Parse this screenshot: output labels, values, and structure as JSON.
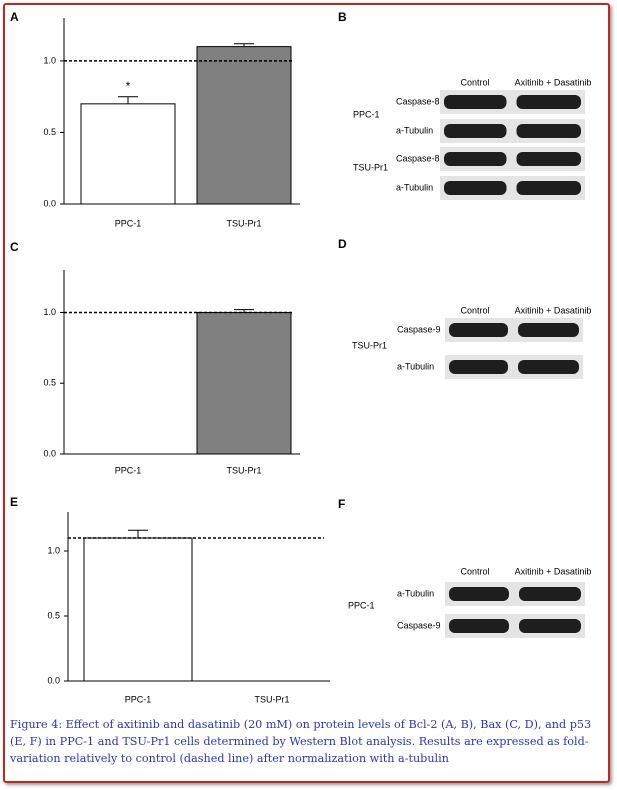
{
  "chart_data": [
    {
      "type": "bar",
      "label": "A",
      "categories": [
        "PPC-1",
        "TSU-Pr1"
      ],
      "values": [
        0.7,
        1.1
      ],
      "errors": [
        0.05,
        0.02
      ],
      "colors": [
        "#ffffff",
        "#808080"
      ],
      "ylim": [
        0,
        1.3
      ],
      "yticks": [
        {
          "value": 0,
          "label": "0.0"
        },
        0.5,
        {
          "value": 1,
          "label": "1.0"
        }
      ],
      "reference_line": 1.0,
      "annotations": [
        {
          "text": "*",
          "x": "PPC-1"
        }
      ]
    },
    {
      "type": "bar",
      "label": "C",
      "categories": [
        "PPC-1",
        "TSU-Pr1"
      ],
      "values": [
        null,
        1.0
      ],
      "errors": [
        null,
        0.02
      ],
      "colors": [
        "#ffffff",
        "#808080"
      ],
      "ylim": [
        0,
        1.3
      ],
      "yticks": [
        {
          "value": 0,
          "label": "0.0"
        },
        0.5,
        {
          "value": 1,
          "label": "1.0"
        }
      ],
      "reference_line": 1.0
    },
    {
      "type": "bar",
      "label": "E",
      "categories": [
        "PPC-1",
        "TSU-Pr1"
      ],
      "values": [
        1.1,
        null
      ],
      "errors": [
        0.06,
        null
      ],
      "colors": [
        "#ffffff",
        "#808080"
      ],
      "ylim": [
        0,
        1.3
      ],
      "yticks": [
        {
          "value": 0,
          "label": "0.0"
        },
        0.5,
        {
          "value": 1,
          "label": "1.0"
        }
      ],
      "reference_line": 1.1
    }
  ],
  "blots": [
    {
      "label": "B",
      "columns": [
        "Control",
        "Axitinib + Dasatinib"
      ],
      "groups": [
        {
          "name": "PPC-1",
          "bands": [
            "Caspase-8",
            "a-Tubulin"
          ]
        },
        {
          "name": "TSU-Pr1",
          "bands": [
            "Caspase-8",
            "a-Tubulin"
          ]
        }
      ]
    },
    {
      "label": "D",
      "columns": [
        "Control",
        "Axitinib + Dasatinib"
      ],
      "groups": [
        {
          "name": "TSU-Pr1",
          "bands": [
            "Caspase-9",
            "a-Tubulin"
          ]
        }
      ]
    },
    {
      "label": "F",
      "columns": [
        "Control",
        "Axitinib + Dasatinib"
      ],
      "groups": [
        {
          "name": "PPC-1",
          "bands": [
            "a-Tubulin",
            "Caspase-9"
          ]
        }
      ]
    }
  ],
  "caption": "Figure 4: Effect of axitinib and dasatinib (20 mM) on protein levels of Bcl-2 (A, B), Bax (C, D), and p53 (E, F) in PPC-1 and TSU-Pr1 cells determined by Western Blot analysis. Results are expressed as fold-variation relatively to control (dashed line) after normalization with a-tubulin"
}
